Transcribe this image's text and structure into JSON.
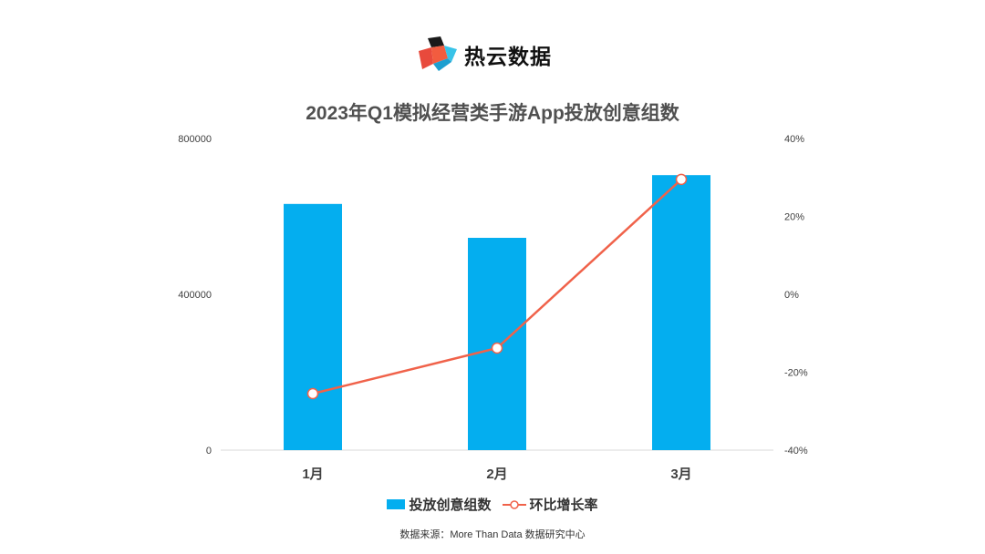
{
  "brand": {
    "name": "热云数据"
  },
  "chart_data": {
    "type": "bar",
    "title": "2023年Q1模拟经营类手游App投放创意组数",
    "categories": [
      "1月",
      "2月",
      "3月"
    ],
    "series": [
      {
        "name": "投放创意组数",
        "type": "bar",
        "axis": "left",
        "color": "#04aeef",
        "values": [
          632000,
          545000,
          706000
        ]
      },
      {
        "name": "环比增长率",
        "type": "line",
        "axis": "right",
        "color": "#f0624a",
        "values": [
          -25.5,
          -13.8,
          29.5
        ]
      }
    ],
    "y_left": {
      "ylim": [
        0,
        800000
      ],
      "ticks": [
        "0",
        "400000",
        "800000"
      ]
    },
    "y_right": {
      "ylim": [
        -40,
        40
      ],
      "ticks": [
        "-40%",
        "-20%",
        "0%",
        "20%",
        "40%"
      ]
    },
    "legend_position": "bottom",
    "grid": false
  },
  "source": "数据来源：More Than Data 数据研究中心"
}
